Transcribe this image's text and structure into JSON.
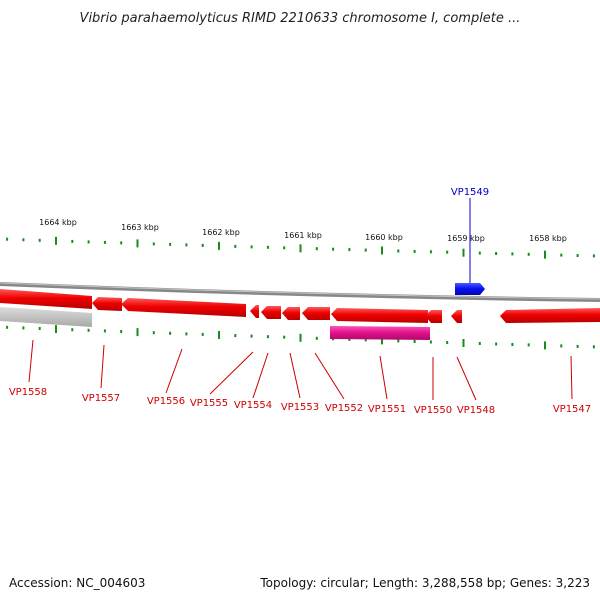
{
  "title": "Vibrio parahaemolyticus RIMD 2210633 chromosome I, complete ...",
  "colors": {
    "forward_gene": "#0a14ee",
    "reverse_gene": "#ee0000",
    "reverse_label": "#cc0000",
    "forward_label": "#0000cc",
    "pseudo_gene": "#e0108a",
    "axis_tick": "#1a8a1a",
    "backbone": "#888888"
  },
  "ruler": {
    "labels": [
      {
        "text": "1664 kbp",
        "pos": 1664
      },
      {
        "text": "1663 kbp",
        "pos": 1663
      },
      {
        "text": "1662 kbp",
        "pos": 1662
      },
      {
        "text": "1661 kbp",
        "pos": 1661
      },
      {
        "text": "1660 kbp",
        "pos": 1660
      },
      {
        "text": "1659 kbp",
        "pos": 1659
      },
      {
        "text": "1658 kbp",
        "pos": 1658
      }
    ]
  },
  "genes_forward": [
    {
      "name": "VP1549",
      "start": 1658.91,
      "end": 1658.56
    }
  ],
  "genes_reverse": [
    {
      "name": "VP1558",
      "label_pos": 1664.35
    },
    {
      "name": "VP1557",
      "label_pos": 1663.58
    },
    {
      "name": "VP1556",
      "label_pos": 1662.81
    },
    {
      "name": "VP1555",
      "label_pos": 1662.25
    },
    {
      "name": "VP1554",
      "label_pos": 1661.76
    },
    {
      "name": "VP1553",
      "label_pos": 1661.19
    },
    {
      "name": "VP1552",
      "label_pos": 1660.51
    },
    {
      "name": "VP1551",
      "label_pos": 1659.91
    },
    {
      "name": "VP1550",
      "label_pos": 1659.38
    },
    {
      "name": "VP1548",
      "label_pos": 1658.87
    },
    {
      "name": "VP1547",
      "label_pos": 1657.79
    }
  ],
  "footer": {
    "accession": "Accession: NC_004603",
    "summary": "Topology: circular; Length: 3,288,558 bp; Genes: 3,223"
  }
}
